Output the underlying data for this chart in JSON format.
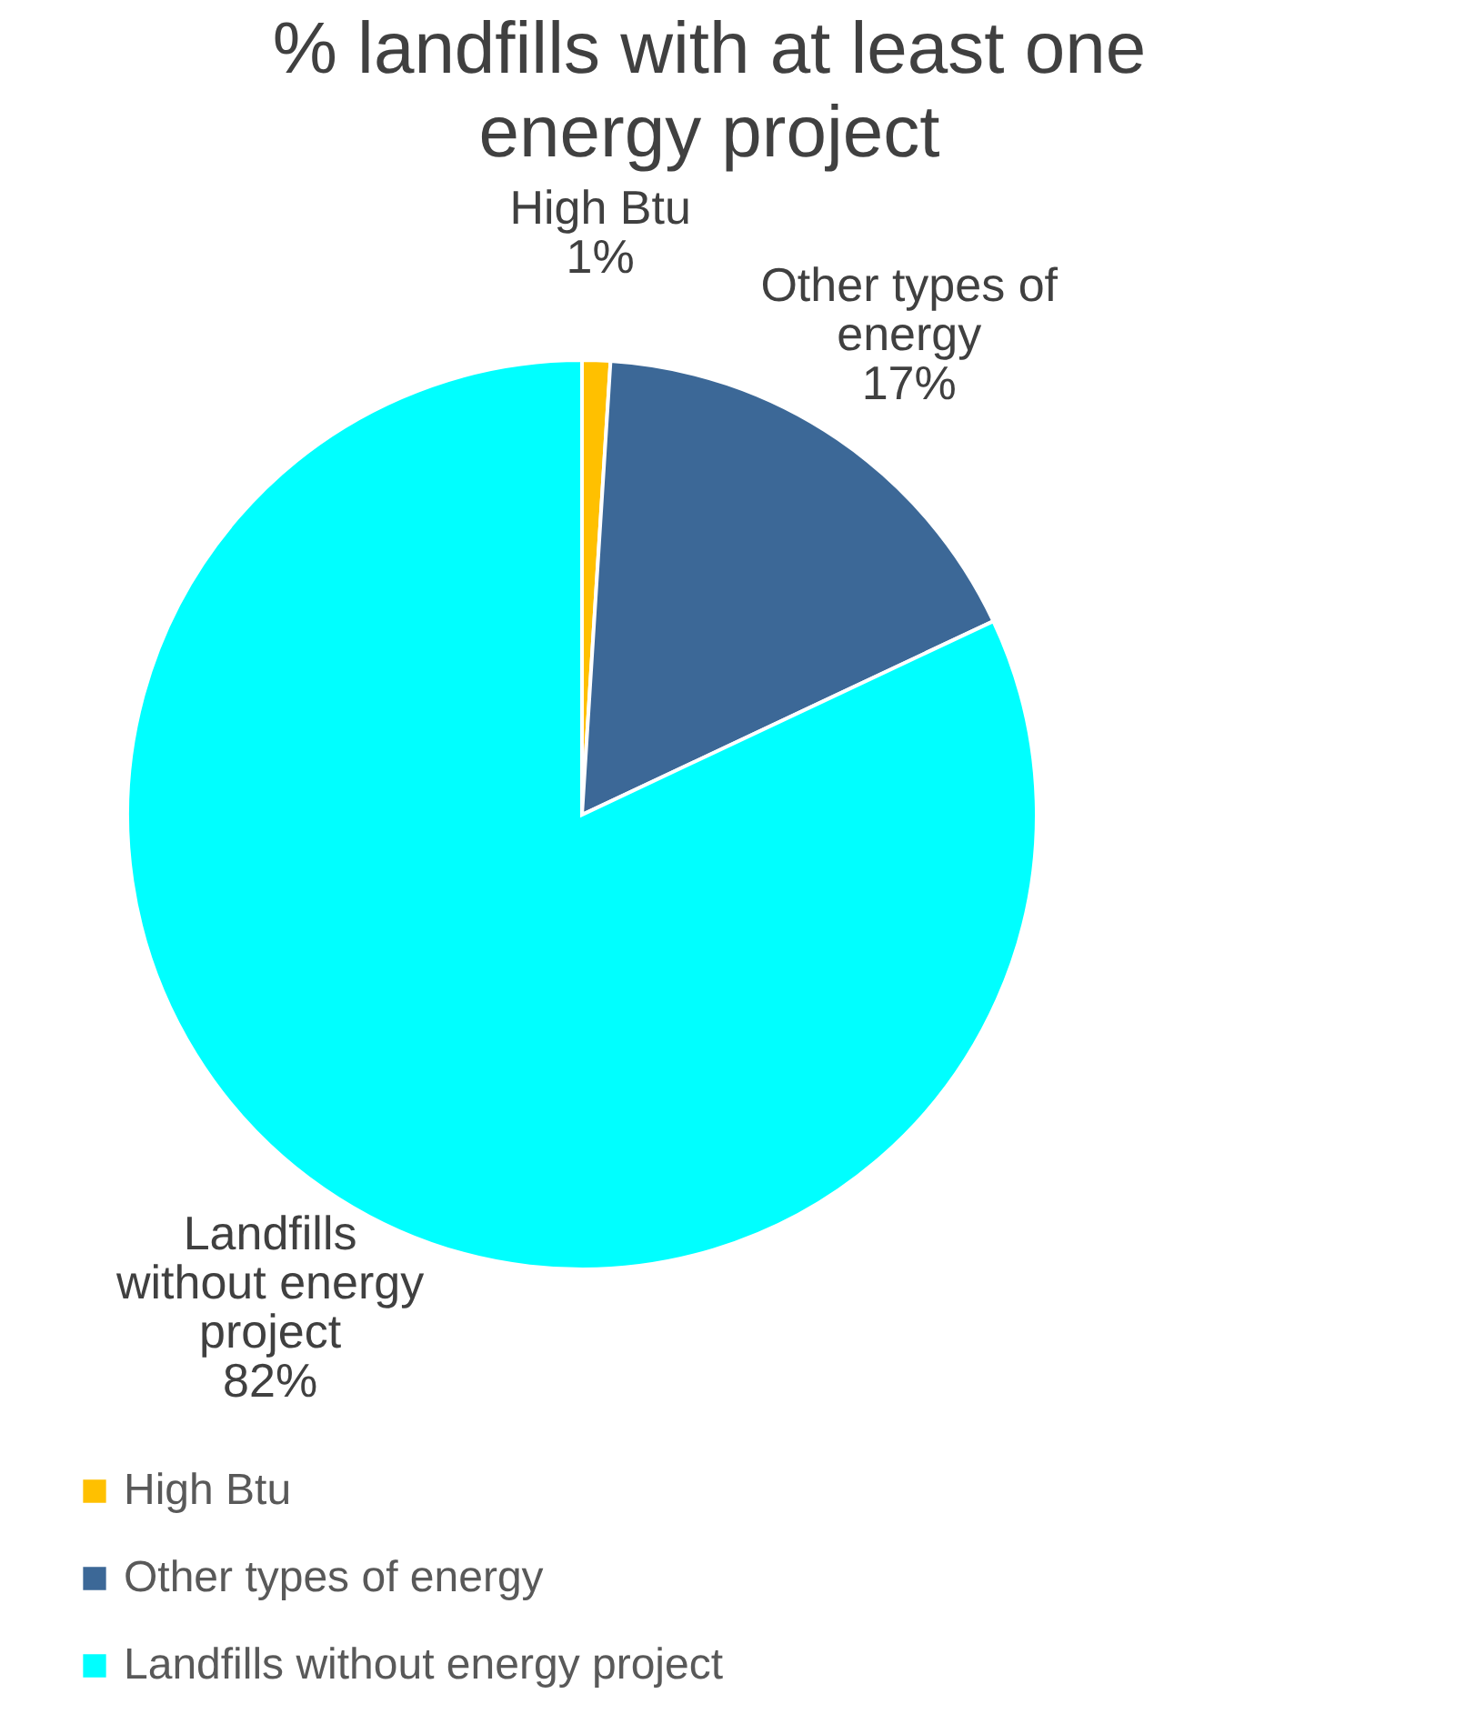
{
  "chart_data": {
    "type": "pie",
    "title": "% landfills with at least one energy project",
    "categories": [
      "High Btu",
      "Other types of energy",
      "Landfills without energy project"
    ],
    "values": [
      1,
      17,
      82
    ],
    "value_labels": [
      "1%",
      "17%",
      "82%"
    ],
    "colors": [
      "#ffc000",
      "#3c6897",
      "#00ffff"
    ],
    "legend": "bottom left"
  }
}
